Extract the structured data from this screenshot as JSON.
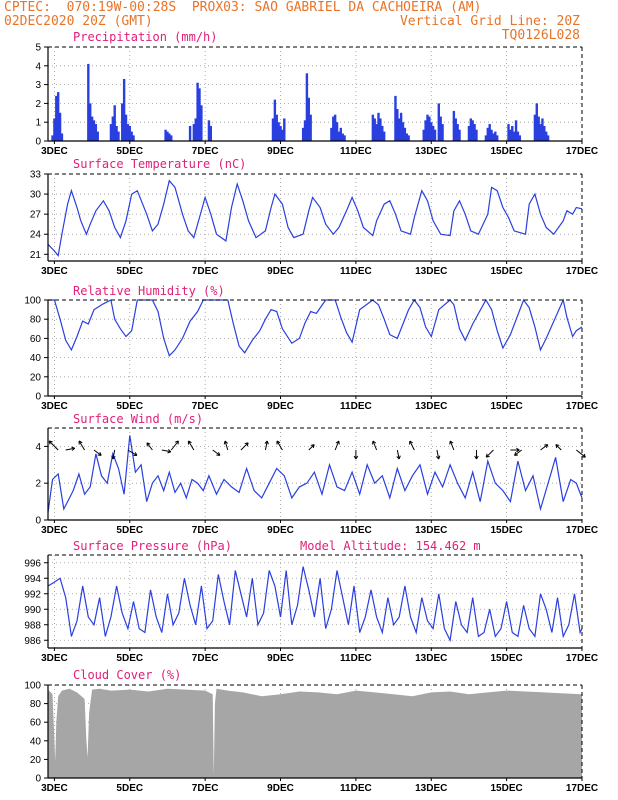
{
  "header": {
    "line1_left": "CPTEC:  070:19W-00:28S  PROX03: SAO GABRIEL DA CACHOEIRA (AM)",
    "line2_left": "02DEC2020 20Z (GMT)",
    "line2_right": "Vertical Grid Line: 20Z",
    "line3_right": "TQ0126L028"
  },
  "colors": {
    "accent": "#e8742a",
    "title": "#e0207a",
    "series": "#2a3fe0",
    "cloud": "#a6a6a6"
  },
  "x_axis": {
    "labels": [
      "3DEC",
      "5DEC",
      "7DEC",
      "9DEC",
      "11DEC",
      "13DEC",
      "15DEC",
      "17DEC"
    ],
    "label_days": [
      3,
      5,
      7,
      9,
      11,
      13,
      15,
      17
    ],
    "start_day": 2.83,
    "end_day": 17.0
  },
  "chart_data": [
    {
      "type": "bar",
      "title": "Precipitation (mm/h)",
      "ylim": [
        0,
        5
      ],
      "yticks": [
        0,
        1,
        2,
        3,
        4,
        5
      ],
      "x_day": [
        2.95,
        3.0,
        3.05,
        3.1,
        3.15,
        3.2,
        3.9,
        3.95,
        4.0,
        4.05,
        4.1,
        4.15,
        4.5,
        4.55,
        4.6,
        4.65,
        4.7,
        4.8,
        4.85,
        4.9,
        4.95,
        5.0,
        5.05,
        5.1,
        5.95,
        6.0,
        6.05,
        6.1,
        6.6,
        6.7,
        6.75,
        6.8,
        6.85,
        6.9,
        7.1,
        7.15,
        8.8,
        8.85,
        8.9,
        8.95,
        9.0,
        9.05,
        9.1,
        9.6,
        9.65,
        9.7,
        9.75,
        9.8,
        10.35,
        10.4,
        10.45,
        10.5,
        10.55,
        10.6,
        10.65,
        10.7,
        11.45,
        11.5,
        11.55,
        11.6,
        11.65,
        11.7,
        11.75,
        12.05,
        12.1,
        12.15,
        12.2,
        12.25,
        12.3,
        12.35,
        12.4,
        12.8,
        12.85,
        12.9,
        12.95,
        13.0,
        13.05,
        13.1,
        13.2,
        13.25,
        13.3,
        13.6,
        13.65,
        13.7,
        13.75,
        14.0,
        14.05,
        14.1,
        14.15,
        14.2,
        14.45,
        14.5,
        14.55,
        14.6,
        14.65,
        14.7,
        14.75,
        15.05,
        15.1,
        15.15,
        15.2,
        15.25,
        15.3,
        15.35,
        15.75,
        15.8,
        15.85,
        15.9,
        15.95,
        16.0,
        16.05,
        16.1
      ],
      "values": [
        0.3,
        1.2,
        2.4,
        2.6,
        1.5,
        0.4,
        4.1,
        2.0,
        1.3,
        1.1,
        0.9,
        0.5,
        0.9,
        1.3,
        1.9,
        0.8,
        0.5,
        2.0,
        3.3,
        1.4,
        0.9,
        0.8,
        0.5,
        0.3,
        0.6,
        0.5,
        0.4,
        0.3,
        0.8,
        0.9,
        1.2,
        3.1,
        2.8,
        1.9,
        1.1,
        0.8,
        1.2,
        2.2,
        1.4,
        1.0,
        0.8,
        0.6,
        1.2,
        0.7,
        1.1,
        3.6,
        2.3,
        1.4,
        0.7,
        1.3,
        1.4,
        1.0,
        0.5,
        0.7,
        0.4,
        0.3,
        1.4,
        1.2,
        0.9,
        1.5,
        1.2,
        0.8,
        0.5,
        2.4,
        1.7,
        1.2,
        1.5,
        1.0,
        0.7,
        0.4,
        0.3,
        0.6,
        1.1,
        1.4,
        1.3,
        1.0,
        0.8,
        0.6,
        2.0,
        1.3,
        0.9,
        1.6,
        1.2,
        0.9,
        0.6,
        0.8,
        1.2,
        1.1,
        0.9,
        0.6,
        0.3,
        0.7,
        0.9,
        0.6,
        0.4,
        0.5,
        0.3,
        0.9,
        0.6,
        0.8,
        0.5,
        1.1,
        0.5,
        0.3,
        1.4,
        2.0,
        1.3,
        0.9,
        1.2,
        0.8,
        0.5,
        0.3
      ]
    },
    {
      "type": "line",
      "title": "Surface Temperature (nC)",
      "ylim": [
        20,
        33
      ],
      "yticks": [
        21,
        24,
        27,
        30,
        33
      ],
      "x_day": [
        2.83,
        3.0,
        3.1,
        3.2,
        3.35,
        3.45,
        3.6,
        3.7,
        3.85,
        3.95,
        4.1,
        4.3,
        4.45,
        4.6,
        4.75,
        4.9,
        5.05,
        5.2,
        5.45,
        5.6,
        5.75,
        5.9,
        6.05,
        6.2,
        6.4,
        6.55,
        6.7,
        6.85,
        7.0,
        7.15,
        7.3,
        7.55,
        7.7,
        7.85,
        8.0,
        8.15,
        8.35,
        8.6,
        8.75,
        8.85,
        9.05,
        9.2,
        9.35,
        9.6,
        9.75,
        9.85,
        10.05,
        10.2,
        10.4,
        10.55,
        10.75,
        10.9,
        11.05,
        11.2,
        11.45,
        11.55,
        11.75,
        11.9,
        12.05,
        12.2,
        12.45,
        12.55,
        12.75,
        12.9,
        13.05,
        13.25,
        13.5,
        13.6,
        13.75,
        13.9,
        14.05,
        14.25,
        14.5,
        14.6,
        14.75,
        14.9,
        15.05,
        15.2,
        15.5,
        15.6,
        15.75,
        15.9,
        16.05,
        16.25,
        16.5,
        16.6,
        16.75,
        16.85,
        17.0
      ],
      "values": [
        22.5,
        21.5,
        20.8,
        24.0,
        28.5,
        30.5,
        28.0,
        26.0,
        24.0,
        25.5,
        27.5,
        29.0,
        27.5,
        25.0,
        23.5,
        26.0,
        30.0,
        30.5,
        27.0,
        24.5,
        25.5,
        28.5,
        32.0,
        31.0,
        27.0,
        24.5,
        23.5,
        26.5,
        29.5,
        27.0,
        24.0,
        23.0,
        28.0,
        31.5,
        29.0,
        26.0,
        23.5,
        24.5,
        28.0,
        30.0,
        28.5,
        25.0,
        23.5,
        24.0,
        27.5,
        29.5,
        28.0,
        25.5,
        24.0,
        25.0,
        27.5,
        29.5,
        27.5,
        25.0,
        23.8,
        26.0,
        28.5,
        29.0,
        27.0,
        24.5,
        24.0,
        26.5,
        30.5,
        29.0,
        26.0,
        24.0,
        23.8,
        27.5,
        29.0,
        27.0,
        24.5,
        24.0,
        27.0,
        31.0,
        30.5,
        28.0,
        26.5,
        24.5,
        24.0,
        28.5,
        30.0,
        27.0,
        25.0,
        24.0,
        26.0,
        27.5,
        27.0,
        28.0,
        27.8
      ]
    },
    {
      "type": "line",
      "title": "Relative Humidity (%)",
      "ylim": [
        0,
        100
      ],
      "yticks": [
        0,
        20,
        40,
        60,
        80,
        100
      ],
      "x_day": [
        2.83,
        3.0,
        3.15,
        3.3,
        3.45,
        3.6,
        3.75,
        3.9,
        4.05,
        4.3,
        4.5,
        4.6,
        4.75,
        4.9,
        5.05,
        5.2,
        5.35,
        5.6,
        5.75,
        5.9,
        6.05,
        6.2,
        6.4,
        6.6,
        6.8,
        6.95,
        7.1,
        7.3,
        7.6,
        7.75,
        7.9,
        8.05,
        8.25,
        8.45,
        8.6,
        8.75,
        8.9,
        9.05,
        9.3,
        9.5,
        9.65,
        9.8,
        9.95,
        10.2,
        10.45,
        10.6,
        10.75,
        10.9,
        11.1,
        11.45,
        11.6,
        11.75,
        11.9,
        12.1,
        12.4,
        12.55,
        12.7,
        12.85,
        13.0,
        13.2,
        13.5,
        13.6,
        13.75,
        13.9,
        14.1,
        14.45,
        14.6,
        14.75,
        14.9,
        15.1,
        15.45,
        15.6,
        15.75,
        15.9,
        16.05,
        16.5,
        16.6,
        16.75,
        16.85,
        17.0
      ],
      "values": [
        100,
        100,
        80,
        58,
        48,
        62,
        78,
        75,
        90,
        96,
        100,
        80,
        70,
        62,
        68,
        100,
        100,
        100,
        88,
        60,
        42,
        48,
        60,
        78,
        88,
        100,
        100,
        100,
        100,
        75,
        52,
        45,
        58,
        68,
        80,
        90,
        88,
        70,
        55,
        60,
        76,
        88,
        86,
        100,
        100,
        82,
        66,
        56,
        90,
        100,
        95,
        80,
        64,
        60,
        90,
        100,
        92,
        72,
        62,
        90,
        100,
        95,
        70,
        58,
        75,
        100,
        90,
        68,
        50,
        64,
        100,
        92,
        72,
        48,
        60,
        100,
        82,
        62,
        68,
        72
      ]
    },
    {
      "type": "line",
      "title": "Surface Wind (m/s)",
      "ylim": [
        0,
        5
      ],
      "yticks": [
        0,
        2,
        4
      ],
      "x_day": [
        2.83,
        2.95,
        3.1,
        3.25,
        3.35,
        3.5,
        3.65,
        3.8,
        3.95,
        4.1,
        4.25,
        4.4,
        4.55,
        4.7,
        4.85,
        5.0,
        5.15,
        5.3,
        5.45,
        5.6,
        5.75,
        5.9,
        6.05,
        6.2,
        6.35,
        6.5,
        6.65,
        6.8,
        6.95,
        7.1,
        7.3,
        7.5,
        7.7,
        7.9,
        8.1,
        8.3,
        8.5,
        8.7,
        8.9,
        9.1,
        9.3,
        9.5,
        9.7,
        9.9,
        10.1,
        10.3,
        10.5,
        10.7,
        10.9,
        11.1,
        11.3,
        11.5,
        11.7,
        11.9,
        12.1,
        12.3,
        12.5,
        12.7,
        12.9,
        13.1,
        13.3,
        13.5,
        13.7,
        13.9,
        14.1,
        14.3,
        14.5,
        14.7,
        14.9,
        15.1,
        15.3,
        15.5,
        15.7,
        15.9,
        16.1,
        16.3,
        16.5,
        16.7,
        16.85,
        17.0
      ],
      "values": [
        0.4,
        2.2,
        2.5,
        0.6,
        1.0,
        1.6,
        2.5,
        1.4,
        1.8,
        3.6,
        2.4,
        2.0,
        3.6,
        2.8,
        1.4,
        4.6,
        2.6,
        3.0,
        1.0,
        2.0,
        2.4,
        1.6,
        2.6,
        1.5,
        2.0,
        1.2,
        2.2,
        2.0,
        1.6,
        2.4,
        1.4,
        2.2,
        1.8,
        1.5,
        2.8,
        1.6,
        1.2,
        2.0,
        2.8,
        2.4,
        1.2,
        1.8,
        2.0,
        2.6,
        1.4,
        3.0,
        1.8,
        1.6,
        2.6,
        1.4,
        3.0,
        2.0,
        2.4,
        1.2,
        2.8,
        1.6,
        2.4,
        3.0,
        1.4,
        2.6,
        1.8,
        3.0,
        2.0,
        1.2,
        2.6,
        1.0,
        3.2,
        2.0,
        1.6,
        1.0,
        3.2,
        1.6,
        2.4,
        0.6,
        2.0,
        3.4,
        1.0,
        2.2,
        2.0,
        1.2
      ],
      "vectors": [
        {
          "x_day": 3.1,
          "u": -1.0,
          "v": 1.0
        },
        {
          "x_day": 3.3,
          "u": 1.0,
          "v": 0.2
        },
        {
          "x_day": 3.8,
          "u": -0.6,
          "v": 1.0
        },
        {
          "x_day": 4.05,
          "u": 0.8,
          "v": -0.6
        },
        {
          "x_day": 4.6,
          "u": -0.2,
          "v": -1.0
        },
        {
          "x_day": 4.95,
          "u": 1.0,
          "v": -0.6
        },
        {
          "x_day": 5.6,
          "u": -0.6,
          "v": 0.8
        },
        {
          "x_day": 5.85,
          "u": 1.0,
          "v": -0.2
        },
        {
          "x_day": 6.1,
          "u": 0.8,
          "v": 1.0
        },
        {
          "x_day": 6.7,
          "u": -0.6,
          "v": 1.0
        },
        {
          "x_day": 7.2,
          "u": 0.8,
          "v": -0.6
        },
        {
          "x_day": 7.6,
          "u": -0.3,
          "v": 1.0
        },
        {
          "x_day": 7.95,
          "u": 0.8,
          "v": 0.8
        },
        {
          "x_day": 8.6,
          "u": 0.2,
          "v": 1.0
        },
        {
          "x_day": 9.05,
          "u": -0.6,
          "v": 1.0
        },
        {
          "x_day": 9.75,
          "u": 0.6,
          "v": 0.6
        },
        {
          "x_day": 10.45,
          "u": 0.4,
          "v": 1.0
        },
        {
          "x_day": 11.0,
          "u": 0.0,
          "v": -1.0
        },
        {
          "x_day": 11.55,
          "u": -0.4,
          "v": 1.0
        },
        {
          "x_day": 12.1,
          "u": 0.2,
          "v": -1.0
        },
        {
          "x_day": 12.55,
          "u": -0.5,
          "v": 1.0
        },
        {
          "x_day": 13.15,
          "u": 0.2,
          "v": -1.0
        },
        {
          "x_day": 13.6,
          "u": -0.4,
          "v": 1.0
        },
        {
          "x_day": 14.2,
          "u": 0.0,
          "v": -1.0
        },
        {
          "x_day": 14.65,
          "u": -0.8,
          "v": -0.8
        },
        {
          "x_day": 15.1,
          "u": 1.0,
          "v": 0.0
        },
        {
          "x_day": 15.4,
          "u": -0.8,
          "v": -0.6
        },
        {
          "x_day": 15.9,
          "u": 0.8,
          "v": 0.6
        },
        {
          "x_day": 16.45,
          "u": -0.6,
          "v": 0.6
        },
        {
          "x_day": 16.85,
          "u": 1.0,
          "v": -0.8
        }
      ]
    },
    {
      "type": "line",
      "title": "Surface Pressure (hPa)",
      "annotation": "Model Altitude: 154.462 m",
      "ylim": [
        985,
        997
      ],
      "yticks": [
        986,
        988,
        990,
        992,
        994,
        996
      ],
      "x_day": [
        2.83,
        3.0,
        3.15,
        3.3,
        3.45,
        3.6,
        3.75,
        3.9,
        4.05,
        4.2,
        4.35,
        4.5,
        4.65,
        4.8,
        4.95,
        5.1,
        5.25,
        5.4,
        5.55,
        5.7,
        5.85,
        6.0,
        6.15,
        6.3,
        6.45,
        6.6,
        6.75,
        6.9,
        7.05,
        7.2,
        7.35,
        7.5,
        7.65,
        7.8,
        7.95,
        8.1,
        8.25,
        8.4,
        8.55,
        8.7,
        8.85,
        9.0,
        9.15,
        9.3,
        9.45,
        9.6,
        9.75,
        9.9,
        10.05,
        10.2,
        10.35,
        10.5,
        10.65,
        10.8,
        10.95,
        11.1,
        11.25,
        11.4,
        11.55,
        11.7,
        11.85,
        12.0,
        12.15,
        12.3,
        12.45,
        12.6,
        12.75,
        12.9,
        13.05,
        13.2,
        13.35,
        13.5,
        13.65,
        13.8,
        13.95,
        14.1,
        14.25,
        14.4,
        14.55,
        14.7,
        14.85,
        15.0,
        15.15,
        15.3,
        15.45,
        15.6,
        15.75,
        15.9,
        16.05,
        16.2,
        16.35,
        16.5,
        16.65,
        16.8,
        16.95,
        17.0
      ],
      "values": [
        993.0,
        993.5,
        994.0,
        991.5,
        986.5,
        988.5,
        993.0,
        989.0,
        988.0,
        991.5,
        986.5,
        989.0,
        993.0,
        989.5,
        987.5,
        991.0,
        987.5,
        987.0,
        992.5,
        989.0,
        987.0,
        992.0,
        988.0,
        989.5,
        994.0,
        990.5,
        988.0,
        993.0,
        987.5,
        988.5,
        994.5,
        991.0,
        988.0,
        995.0,
        992.0,
        989.0,
        994.0,
        988.0,
        989.5,
        995.0,
        993.0,
        989.0,
        995.0,
        988.0,
        990.5,
        995.5,
        992.5,
        989.0,
        994.0,
        987.5,
        990.0,
        995.0,
        991.5,
        988.0,
        993.0,
        987.0,
        989.0,
        992.5,
        989.0,
        987.0,
        991.5,
        988.0,
        989.0,
        993.0,
        989.0,
        987.0,
        991.5,
        988.5,
        987.5,
        992.0,
        987.5,
        986.0,
        991.0,
        988.0,
        987.0,
        991.5,
        986.5,
        987.0,
        990.0,
        986.5,
        987.5,
        991.0,
        987.0,
        986.5,
        990.5,
        987.5,
        986.5,
        992.0,
        990.0,
        987.0,
        991.5,
        986.5,
        988.0,
        992.0,
        987.0,
        987.5
      ]
    },
    {
      "type": "area",
      "title": "Cloud Cover (%)",
      "ylim": [
        0,
        100
      ],
      "yticks": [
        0,
        20,
        40,
        60,
        80,
        100
      ],
      "x_day": [
        2.83,
        2.95,
        3.0,
        3.02,
        3.05,
        3.1,
        3.2,
        3.4,
        3.6,
        3.8,
        3.85,
        3.88,
        3.92,
        4.0,
        4.2,
        4.5,
        5.0,
        5.5,
        6.0,
        6.5,
        7.0,
        7.2,
        7.23,
        7.26,
        7.3,
        7.6,
        8.0,
        8.5,
        9.0,
        9.5,
        10.0,
        10.5,
        11.0,
        11.5,
        12.0,
        12.5,
        13.0,
        13.5,
        14.0,
        14.5,
        15.0,
        15.5,
        16.0,
        16.5,
        17.0
      ],
      "values": [
        95,
        90,
        40,
        18,
        60,
        88,
        94,
        96,
        92,
        85,
        40,
        22,
        70,
        95,
        96,
        94,
        95,
        93,
        96,
        95,
        94,
        90,
        3,
        80,
        96,
        94,
        92,
        88,
        90,
        93,
        92,
        90,
        94,
        92,
        90,
        88,
        92,
        93,
        90,
        92,
        94,
        93,
        92,
        91,
        90
      ]
    }
  ]
}
